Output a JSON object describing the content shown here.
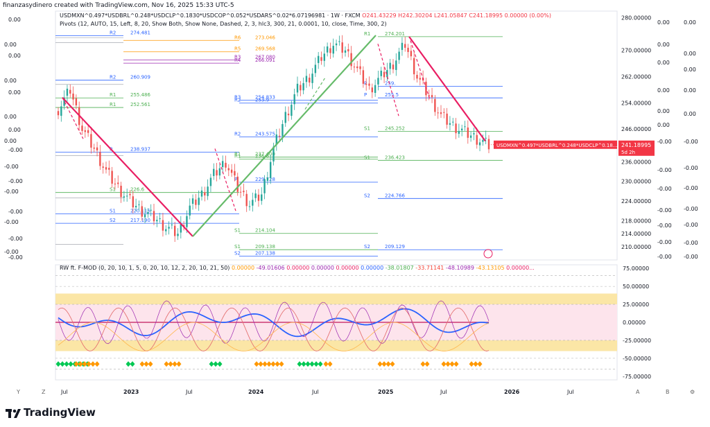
{
  "header": {
    "created_line": "finanzasydinero created with TradingView.com, Nov 16, 2025 15:33 UTC-5"
  },
  "main_title": {
    "symbol": "USDMXN^0.497*USDBRL^0.248*USDCLP^0.1830*USDCOP^0.052*USDARS^0.02*6.07196981 · 1W · FXCM",
    "open": "O241.43229",
    "high": "H242.30204",
    "low": "L241.05847",
    "close": "C241.18995",
    "change": "0.00000 (0.00%)"
  },
  "pivots_label": "Pivots (12, AUTO, 15, Left, 8, 20, Show Both, Show None, Dashed, 2, 3, hlc3, 300, 21, 0.0001, 10, close, Time, 300, 2)",
  "osc_label": "RW ft. F-MOD (0, 20, 10, 1, 5, 0, 20, 10, 12, 2, 20, 10, 21, 50)",
  "osc_values": [
    {
      "text": "0.00000",
      "color": "#ff9800"
    },
    {
      "text": "-49.01606",
      "color": "#9c27b0"
    },
    {
      "text": "0.00000",
      "color": "#e91e63"
    },
    {
      "text": "0.00000",
      "color": "#9c27b0"
    },
    {
      "text": "0.00000",
      "color": "#e91e63"
    },
    {
      "text": "0.00000",
      "color": "#2962ff"
    },
    {
      "text": "-38.01807",
      "color": "#4caf50"
    },
    {
      "text": "-33.71141",
      "color": "#f44336"
    },
    {
      "text": "-48.10989",
      "color": "#9c27b0"
    },
    {
      "text": "-43.13105",
      "color": "#ff9800"
    },
    {
      "text": "0.00000...",
      "color": "#e91e63"
    }
  ],
  "price_axis": [
    "280.00000",
    "270.00000",
    "262.00000",
    "254.00000",
    "246.00000",
    "236.00000",
    "230.00000",
    "224.00000",
    "218.00000",
    "214.00000",
    "210.00000"
  ],
  "price_tag": {
    "label": "USDMXN^0.497*USDBRL^0.248*USDCLP^0.18...",
    "value": "241.18995",
    "countdown": "5d 2h"
  },
  "osc_axis": [
    "75.00000",
    "50.00000",
    "25.00000",
    "0.00000",
    "-25.00000",
    "-50.00000",
    "-75.00000"
  ],
  "time_axis": [
    "Jul",
    "2023",
    "Jul",
    "2024",
    "Jul",
    "2025",
    "Jul",
    "2026",
    "Jul"
  ],
  "axis_buttons": [
    "Y",
    "Z",
    "A",
    "B",
    "⚙"
  ],
  "left_strip": [
    {
      "text": "0.00",
      "y": 8
    },
    {
      "text": "0.00",
      "y": 44
    },
    {
      "text": "0.00",
      "y": 60
    },
    {
      "text": "0.00",
      "y": 96
    },
    {
      "text": "0.00",
      "y": 113
    },
    {
      "text": "0.00",
      "y": 148
    },
    {
      "text": "0.00",
      "y": 167
    },
    {
      "text": "0.00",
      "y": 183
    },
    {
      "text": "-0.00",
      "y": 196
    },
    {
      "text": "-0.00",
      "y": 220
    },
    {
      "text": "-0.00",
      "y": 241
    },
    {
      "text": "-0.00",
      "y": 256
    },
    {
      "text": "-0.00",
      "y": 285
    },
    {
      "text": "-0.00",
      "y": 300
    },
    {
      "text": "-0.00",
      "y": 324
    },
    {
      "text": "-0.00",
      "y": 343
    },
    {
      "text": "-0.00",
      "y": 351
    }
  ],
  "right_strip_a": [
    {
      "text": "0.00",
      "y": 12
    },
    {
      "text": "0.00",
      "y": 44
    },
    {
      "text": "0.00",
      "y": 70
    },
    {
      "text": "0.00",
      "y": 110
    },
    {
      "text": "0.00",
      "y": 140
    },
    {
      "text": "0.00",
      "y": 160
    },
    {
      "text": "-0.00",
      "y": 184
    },
    {
      "text": "-0.00",
      "y": 225
    },
    {
      "text": "-0.00",
      "y": 252
    },
    {
      "text": "-0.00",
      "y": 283
    },
    {
      "text": "-0.00",
      "y": 305
    },
    {
      "text": "-0.00",
      "y": 329
    },
    {
      "text": "-0.00",
      "y": 350
    }
  ],
  "right_strip_b": [
    {
      "text": "0.00",
      "y": 12
    },
    {
      "text": "0.00",
      "y": 57
    },
    {
      "text": "0.00",
      "y": 80
    },
    {
      "text": "0.00",
      "y": 110
    },
    {
      "text": "0.00",
      "y": 144
    },
    {
      "text": "-0.00",
      "y": 184
    },
    {
      "text": "-0.00",
      "y": 222
    },
    {
      "text": "-0.00",
      "y": 251
    },
    {
      "text": "-0.00",
      "y": 281
    },
    {
      "text": "-0.00",
      "y": 304
    },
    {
      "text": "-0.00",
      "y": 330
    },
    {
      "text": "-0.00",
      "y": 350
    }
  ],
  "pivot_labels": [
    {
      "tag": "R2",
      "val": "274.481",
      "color": "#2962ff"
    },
    {
      "tag": "R2",
      "val": "260.909",
      "color": "#2962ff"
    },
    {
      "tag": "R1",
      "val": "255.486",
      "color": "#4caf50"
    },
    {
      "tag": "R1",
      "val": "252.561",
      "color": "#4caf50"
    },
    {
      "tag": "P",
      "val": "238.937",
      "color": "#2962ff"
    },
    {
      "tag": "S1",
      "val": "226.6",
      "color": "#4caf50"
    },
    {
      "tag": "S1",
      "val": "220.115",
      "color": "#2962ff"
    },
    {
      "tag": "S2",
      "val": "217.190",
      "color": "#2962ff"
    },
    {
      "tag": "R6",
      "val": "273.046",
      "color": "#ff9800"
    },
    {
      "tag": "R5",
      "val": "269.568",
      "color": "#ff9800"
    },
    {
      "tag": "R3",
      "val": "267.080",
      "color": "#9c27b0"
    },
    {
      "tag": "R4",
      "val": "266.091",
      "color": "#9c27b0"
    },
    {
      "tag": "R3",
      "val": "254.833",
      "color": "#2962ff"
    },
    {
      "tag": "R2",
      "val": "253.9",
      "color": "#2962ff"
    },
    {
      "tag": "R2",
      "val": "243.575",
      "color": "#2962ff"
    },
    {
      "tag": "R1",
      "val": "237.400",
      "color": "#4caf50"
    },
    {
      "tag": "R1",
      "val": "236.8",
      "color": "#4caf50"
    },
    {
      "tag": "P",
      "val": "229.728",
      "color": "#2962ff"
    },
    {
      "tag": "S1",
      "val": "214.104",
      "color": "#4caf50"
    },
    {
      "tag": "S1",
      "val": "209.138",
      "color": "#4caf50"
    },
    {
      "tag": "S2",
      "val": "207.138",
      "color": "#2962ff"
    },
    {
      "tag": "R1",
      "val": "274.201",
      "color": "#4caf50"
    },
    {
      "tag": "P",
      "val": "259.",
      "color": "#2962ff"
    },
    {
      "tag": "P",
      "val": "255.5",
      "color": "#2962ff"
    },
    {
      "tag": "S1",
      "val": "245.252",
      "color": "#4caf50"
    },
    {
      "tag": "S1",
      "val": "236.423",
      "color": "#4caf50"
    },
    {
      "tag": "S2",
      "val": "224.766",
      "color": "#2962ff"
    },
    {
      "tag": "S2",
      "val": "209.129",
      "color": "#2962ff"
    }
  ],
  "colors": {
    "up": "#26a69a",
    "down": "#ef5350",
    "green_trend": "#66bb6a",
    "red_trend": "#e91e63",
    "accent": "#f23645"
  },
  "chart_data": {
    "type": "line",
    "title": "",
    "ylim": [
      206,
      282
    ],
    "series": [
      {
        "values": [
          252,
          258,
          246,
          240,
          233,
          228,
          224,
          221,
          219,
          216,
          214,
          222,
          226,
          232,
          236,
          228,
          223,
          226,
          240,
          250,
          258,
          262,
          268,
          272,
          270,
          264,
          258,
          262,
          266,
          272,
          262,
          256,
          250,
          247,
          245,
          243,
          241
        ]
      }
    ],
    "osc_ylim": [
      -80,
      80
    ]
  }
}
